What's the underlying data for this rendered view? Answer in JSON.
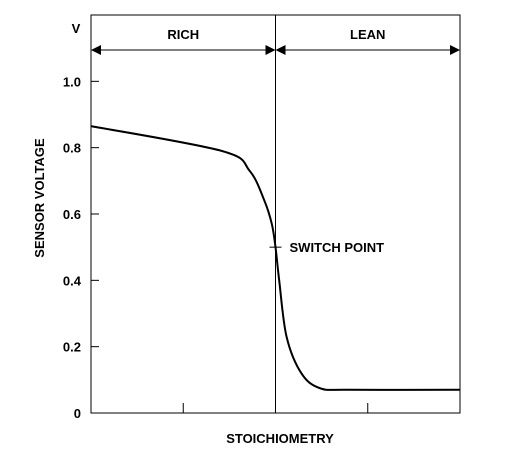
{
  "chart_data": {
    "type": "line",
    "xlabel": "STOICHIOMETRY",
    "ylabel": "SENSOR VOLTAGE",
    "y_unit": "V",
    "ylim": [
      0,
      1.2
    ],
    "y_ticks": [
      "0",
      "0.2",
      "0.4",
      "0.6",
      "0.8",
      "1.0"
    ],
    "y_tick_values": [
      0,
      0.2,
      0.4,
      0.6,
      0.8,
      1.0
    ],
    "x_tick_count": 4,
    "grid": false,
    "regions": [
      {
        "label": "RICH"
      },
      {
        "label": "LEAN"
      }
    ],
    "annotation": {
      "label": "SWITCH POINT",
      "y": 0.5
    },
    "series": [
      {
        "x": [
          0,
          0.355,
          0.43,
          0.47,
          0.49,
          0.5,
          0.51,
          0.53,
          0.57,
          0.62,
          0.7,
          1.0
        ],
        "values": [
          0.865,
          0.79,
          0.73,
          0.64,
          0.57,
          0.5,
          0.4,
          0.23,
          0.12,
          0.075,
          0.07,
          0.07
        ]
      }
    ]
  }
}
